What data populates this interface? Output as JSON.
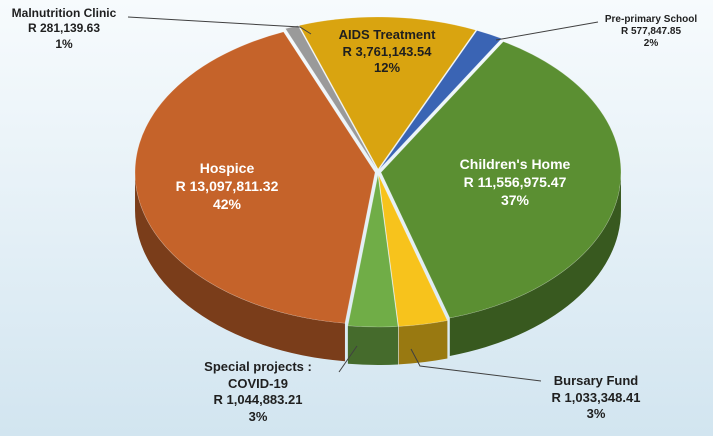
{
  "chart_data": {
    "type": "pie",
    "title": "",
    "slices": [
      {
        "label": "Pre-primary School",
        "amount": "R 577,847.85",
        "value": 577847.85,
        "percent": "2%",
        "color": "#3a64b4"
      },
      {
        "label": "Children's Home",
        "amount": "R 11,556,975.47",
        "value": 11556975.47,
        "percent": "37%",
        "color": "#5b8f32"
      },
      {
        "label": "Bursary Fund",
        "amount": "R 1,033,348.41",
        "value": 1033348.41,
        "percent": "3%",
        "color": "#f7c31c"
      },
      {
        "label": "Special projects : COVID-19",
        "label_line1": "Special projects :",
        "label_line2": "COVID-19",
        "amount": "R 1,044,883.21",
        "value": 1044883.21,
        "percent": "3%",
        "color": "#70ad47"
      },
      {
        "label": "Hospice",
        "amount": "R 13,097,811.32",
        "value": 13097811.32,
        "percent": "42%",
        "color": "#c5632a"
      },
      {
        "label": "Malnutrition Clinic",
        "amount": "R 281,139.63",
        "value": 281139.63,
        "percent": "1%",
        "color": "#9a9a9a"
      },
      {
        "label": "AIDS Treatment",
        "amount": "R 3,761,143.54",
        "value": 3761143.54,
        "percent": "12%",
        "color": "#d9a410"
      }
    ]
  }
}
